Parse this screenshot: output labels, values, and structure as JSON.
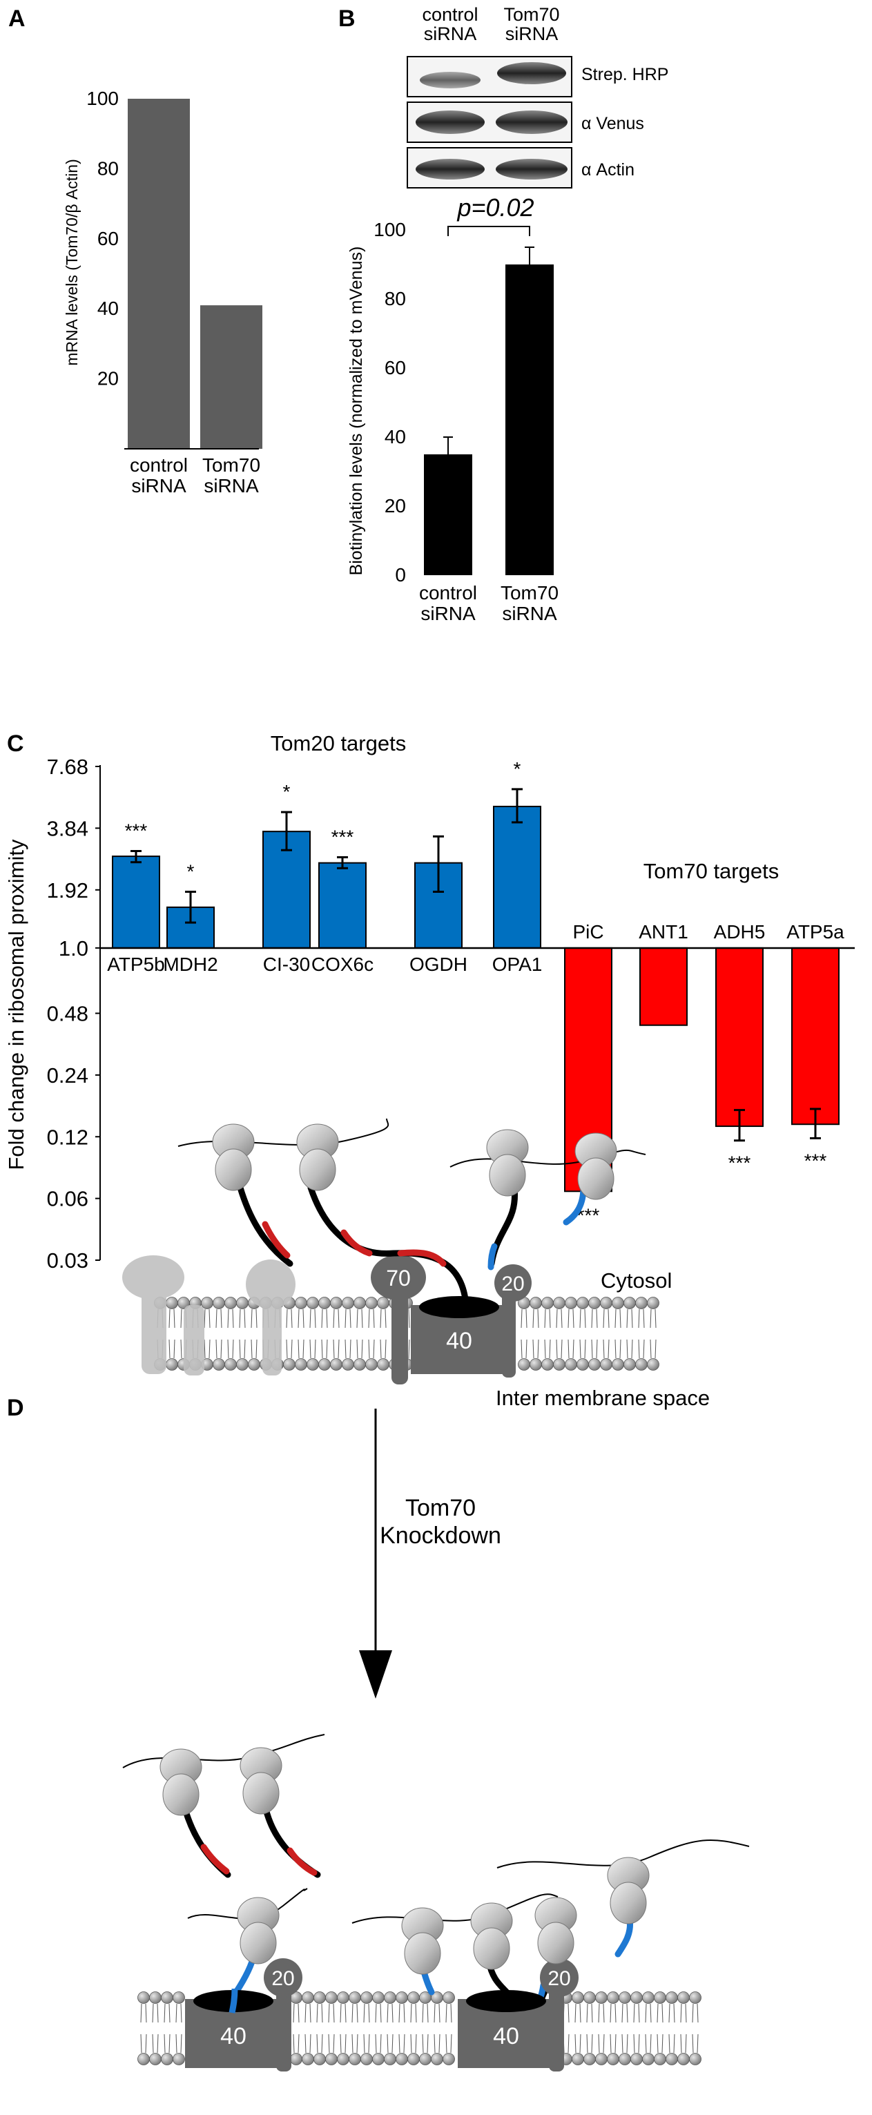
{
  "colors": {
    "bar_gray": "#5d5d5d",
    "bar_black": "#000000",
    "bar_blue": "#0070c0",
    "bar_red": "#ff0000",
    "nascent_red": "#cc1f1f",
    "nascent_blue": "#1e78d2",
    "protein_dark": "#666666",
    "ribosome": "#c8c8c8"
  },
  "panels": {
    "a": {
      "label": "A"
    },
    "b": {
      "label": "B",
      "pvalue": "p=0.02"
    },
    "c": {
      "label": "C"
    },
    "d": {
      "label": "D"
    }
  },
  "blot": {
    "lanes": [
      "control\nsiRNA",
      "Tom70\nsiRNA"
    ],
    "rows": [
      {
        "label": "Strep. HRP"
      },
      {
        "label": "α Venus"
      },
      {
        "label": "α Actin"
      }
    ]
  },
  "chart_data": [
    {
      "id": "panel-a",
      "type": "bar",
      "categories": [
        "control\nsiRNA",
        "Tom70\nsiRNA"
      ],
      "values": [
        100,
        41
      ],
      "ylabel": "mRNA levels (Tom70/β Actin)",
      "xlabel": "",
      "ylim": [
        0,
        100
      ],
      "yticks": [
        20,
        40,
        60,
        80,
        100
      ],
      "grid": false
    },
    {
      "id": "panel-b",
      "type": "bar",
      "categories": [
        "control\nsiRNA",
        "Tom70\nsiRNA"
      ],
      "values": [
        35,
        90
      ],
      "errors": [
        5,
        5
      ],
      "ylabel": "Biotinylation levels (normalized to mVenus)",
      "xlabel": "",
      "ylim": [
        0,
        100
      ],
      "yticks": [
        0,
        20,
        40,
        60,
        80,
        100
      ],
      "annotation": "p=0.02",
      "grid": false
    },
    {
      "id": "panel-c",
      "type": "bar",
      "scale": "log2",
      "baseline": 1.0,
      "ylabel": "Fold change in ribosomal proximity",
      "ylim": [
        0.03,
        7.68
      ],
      "yticks": [
        7.68,
        3.84,
        1.92,
        1.0,
        0.48,
        0.24,
        0.12,
        0.06,
        0.03
      ],
      "yticklabels": [
        "7.68",
        "3.84",
        "1.92",
        "1.0",
        "0.48",
        "0.24",
        "0.12",
        "0.06",
        "0.03"
      ],
      "series": [
        {
          "name": "Tom20 targets",
          "categories": [
            "ATP5b",
            "MDH2",
            "CI-30",
            "COX6c",
            "OGDH",
            "OPA1"
          ],
          "values": [
            2.8,
            1.58,
            3.7,
            2.6,
            2.6,
            4.9
          ],
          "err_low": [
            2.62,
            1.33,
            3.0,
            2.45,
            1.88,
            4.1
          ],
          "err_high": [
            2.97,
            1.88,
            4.6,
            2.77,
            3.5,
            5.95
          ],
          "significance": [
            "***",
            "*",
            "*",
            "***",
            "",
            "*"
          ]
        },
        {
          "name": "Tom70 targets",
          "categories": [
            "PiC",
            "ANT1",
            "ADH5",
            "ATP5a"
          ],
          "values": [
            0.065,
            0.42,
            0.135,
            0.138
          ],
          "err_low": [
            0.064,
            null,
            0.115,
            0.118
          ],
          "err_high": [
            0.066,
            null,
            0.162,
            0.164
          ],
          "significance": [
            "***",
            "",
            "***",
            "***"
          ]
        }
      ]
    }
  ],
  "diagram": {
    "tom70_label": "70",
    "tom20_label": "20",
    "tom40_label": "40",
    "cytosol_label": "Cytosol",
    "ims_label": "Inter membrane space",
    "arrow_label": "Tom70\nKnockdown"
  }
}
